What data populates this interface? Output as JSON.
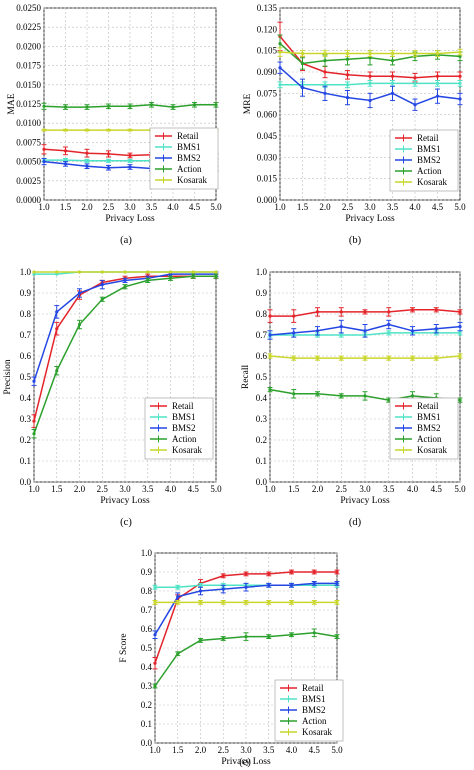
{
  "series_colors": {
    "Retail": "#e3242b",
    "BMS1": "#4fe3c6",
    "BMS2": "#2446e3",
    "Action": "#2ca02c",
    "Kosarak": "#c9d62b"
  },
  "chart_data": [
    {
      "type": "line",
      "panel_label": "(a)",
      "xlabel": "Privacy Loss",
      "ylabel": "MAE",
      "xlim": [
        1.0,
        5.0
      ],
      "ylim": [
        0.0,
        0.025
      ],
      "xticks": [
        "1.0",
        "1.5",
        "2.0",
        "2.5",
        "3.0",
        "3.5",
        "4.0",
        "4.5",
        "5.0"
      ],
      "yticks": [
        "0.0000",
        "0.0025",
        "0.0050",
        "0.0075",
        "0.0100",
        "0.0125",
        "0.0150",
        "0.0175",
        "0.0200",
        "0.0225",
        "0.0250"
      ],
      "grid": true,
      "legend_position": "bottom-right",
      "x": [
        1.0,
        1.5,
        2.0,
        2.5,
        3.0,
        3.5,
        4.0,
        4.5,
        5.0
      ],
      "series": [
        {
          "name": "Retail",
          "values": [
            0.0066,
            0.0064,
            0.0061,
            0.006,
            0.0058,
            0.0059,
            0.0058,
            0.0057,
            0.0057
          ],
          "err": [
            0.0006,
            0.0005,
            0.0005,
            0.0004,
            0.0003,
            0.0003,
            0.0003,
            0.0003,
            0.0003
          ]
        },
        {
          "name": "BMS1",
          "values": [
            0.0052,
            0.0052,
            0.0051,
            0.0051,
            0.0051,
            0.0051,
            0.0051,
            0.0051,
            0.0051
          ],
          "err": [
            0.0002,
            0.0002,
            0.0002,
            0.0002,
            0.0002,
            0.0002,
            0.0002,
            0.0002,
            0.0002
          ]
        },
        {
          "name": "BMS2",
          "values": [
            0.005,
            0.0047,
            0.0044,
            0.0042,
            0.0043,
            0.0041,
            0.0042,
            0.0041,
            0.0041
          ],
          "err": [
            0.0004,
            0.0003,
            0.0003,
            0.0003,
            0.0003,
            0.0003,
            0.0003,
            0.0003,
            0.0003
          ]
        },
        {
          "name": "Action",
          "values": [
            0.0122,
            0.0121,
            0.0121,
            0.0122,
            0.0122,
            0.0124,
            0.0121,
            0.0124,
            0.0124
          ],
          "err": [
            0.0004,
            0.0003,
            0.0003,
            0.0003,
            0.0003,
            0.0003,
            0.0003,
            0.0003,
            0.0003
          ]
        },
        {
          "name": "Kosarak",
          "values": [
            0.0091,
            0.0091,
            0.0091,
            0.0091,
            0.0091,
            0.0091,
            0.0091,
            0.0091,
            0.0091
          ],
          "err": [
            0.0001,
            0.0001,
            0.0001,
            0.0001,
            0.0001,
            0.0001,
            0.0001,
            0.0001,
            0.0001
          ]
        }
      ]
    },
    {
      "type": "line",
      "panel_label": "(b)",
      "xlabel": "Privacy Loss",
      "ylabel": "MRE",
      "xlim": [
        1.0,
        5.0
      ],
      "ylim": [
        0.0,
        0.135
      ],
      "xticks": [
        "1.0",
        "1.5",
        "2.0",
        "2.5",
        "3.0",
        "3.5",
        "4.0",
        "4.5",
        "5.0"
      ],
      "yticks": [
        "0.000",
        "0.015",
        "0.030",
        "0.045",
        "0.060",
        "0.075",
        "0.090",
        "0.105",
        "0.120",
        "0.135"
      ],
      "grid": true,
      "legend_position": "bottom-right",
      "x": [
        1.0,
        1.5,
        2.0,
        2.5,
        3.0,
        3.5,
        4.0,
        4.5,
        5.0
      ],
      "series": [
        {
          "name": "Retail",
          "values": [
            0.115,
            0.096,
            0.09,
            0.088,
            0.087,
            0.087,
            0.086,
            0.087,
            0.087
          ],
          "err": [
            0.01,
            0.005,
            0.004,
            0.003,
            0.003,
            0.003,
            0.003,
            0.003,
            0.003
          ]
        },
        {
          "name": "BMS1",
          "values": [
            0.081,
            0.081,
            0.081,
            0.081,
            0.082,
            0.082,
            0.082,
            0.082,
            0.082
          ],
          "err": [
            0.002,
            0.002,
            0.002,
            0.002,
            0.002,
            0.002,
            0.002,
            0.002,
            0.002
          ]
        },
        {
          "name": "BMS2",
          "values": [
            0.093,
            0.079,
            0.075,
            0.072,
            0.07,
            0.075,
            0.067,
            0.073,
            0.071
          ],
          "err": [
            0.004,
            0.006,
            0.005,
            0.005,
            0.005,
            0.005,
            0.004,
            0.005,
            0.004
          ]
        },
        {
          "name": "Action",
          "values": [
            0.11,
            0.096,
            0.098,
            0.099,
            0.1,
            0.098,
            0.101,
            0.102,
            0.101
          ],
          "err": [
            0.006,
            0.004,
            0.004,
            0.004,
            0.005,
            0.003,
            0.003,
            0.003,
            0.003
          ]
        },
        {
          "name": "Kosarak",
          "values": [
            0.104,
            0.103,
            0.103,
            0.103,
            0.103,
            0.103,
            0.103,
            0.103,
            0.104
          ],
          "err": [
            0.003,
            0.002,
            0.002,
            0.002,
            0.002,
            0.002,
            0.002,
            0.002,
            0.002
          ]
        }
      ]
    },
    {
      "type": "line",
      "panel_label": "(c)",
      "xlabel": "Privacy Loss",
      "ylabel": "Precision",
      "xlim": [
        1.0,
        5.0
      ],
      "ylim": [
        0.0,
        1.0
      ],
      "xticks": [
        "1.0",
        "1.5",
        "2.0",
        "2.5",
        "3.0",
        "3.5",
        "4.0",
        "4.5",
        "5.0"
      ],
      "yticks": [
        "0.0",
        "0.1",
        "0.2",
        "0.3",
        "0.4",
        "0.5",
        "0.6",
        "0.7",
        "0.8",
        "0.9",
        "1.0"
      ],
      "grid": true,
      "legend_position": "bottom-right",
      "x": [
        1.0,
        1.5,
        2.0,
        2.5,
        3.0,
        3.5,
        4.0,
        4.5,
        5.0
      ],
      "series": [
        {
          "name": "Retail",
          "values": [
            0.29,
            0.73,
            0.89,
            0.95,
            0.97,
            0.98,
            0.98,
            0.98,
            0.98
          ],
          "err": [
            0.03,
            0.03,
            0.02,
            0.01,
            0.01,
            0.01,
            0.01,
            0.01,
            0.01
          ]
        },
        {
          "name": "BMS1",
          "values": [
            0.99,
            0.99,
            1.0,
            1.0,
            1.0,
            1.0,
            1.0,
            1.0,
            1.0
          ],
          "err": [
            0.0,
            0.0,
            0.0,
            0.0,
            0.0,
            0.0,
            0.0,
            0.0,
            0.0
          ]
        },
        {
          "name": "BMS2",
          "values": [
            0.48,
            0.81,
            0.9,
            0.94,
            0.96,
            0.97,
            0.99,
            0.99,
            0.99
          ],
          "err": [
            0.02,
            0.03,
            0.02,
            0.02,
            0.01,
            0.01,
            0.01,
            0.01,
            0.01
          ]
        },
        {
          "name": "Action",
          "values": [
            0.23,
            0.53,
            0.75,
            0.87,
            0.93,
            0.96,
            0.97,
            0.98,
            0.98
          ],
          "err": [
            0.02,
            0.02,
            0.02,
            0.01,
            0.01,
            0.01,
            0.01,
            0.01,
            0.01
          ]
        },
        {
          "name": "Kosarak",
          "values": [
            1.0,
            1.0,
            1.0,
            1.0,
            1.0,
            1.0,
            1.0,
            1.0,
            1.0
          ],
          "err": [
            0.0,
            0.0,
            0.0,
            0.0,
            0.0,
            0.0,
            0.0,
            0.0,
            0.0
          ]
        }
      ]
    },
    {
      "type": "line",
      "panel_label": "(d)",
      "xlabel": "Privacy Loss",
      "ylabel": "Recall",
      "xlim": [
        1.0,
        5.0
      ],
      "ylim": [
        0.0,
        1.0
      ],
      "xticks": [
        "1.0",
        "1.5",
        "2.0",
        "2.5",
        "3.0",
        "3.5",
        "4.0",
        "4.5",
        "5.0"
      ],
      "yticks": [
        "0.0",
        "0.1",
        "0.2",
        "0.3",
        "0.4",
        "0.5",
        "0.6",
        "0.7",
        "0.8",
        "0.9",
        "1.0"
      ],
      "grid": true,
      "legend_position": "bottom-right",
      "x": [
        1.0,
        1.5,
        2.0,
        2.5,
        3.0,
        3.5,
        4.0,
        4.5,
        5.0
      ],
      "series": [
        {
          "name": "Retail",
          "values": [
            0.79,
            0.79,
            0.81,
            0.81,
            0.81,
            0.81,
            0.82,
            0.82,
            0.81
          ],
          "err": [
            0.03,
            0.03,
            0.02,
            0.02,
            0.01,
            0.02,
            0.01,
            0.01,
            0.01
          ]
        },
        {
          "name": "BMS1",
          "values": [
            0.7,
            0.7,
            0.7,
            0.7,
            0.7,
            0.71,
            0.71,
            0.71,
            0.71
          ],
          "err": [
            0.01,
            0.01,
            0.01,
            0.01,
            0.01,
            0.01,
            0.01,
            0.01,
            0.01
          ]
        },
        {
          "name": "BMS2",
          "values": [
            0.7,
            0.71,
            0.72,
            0.74,
            0.72,
            0.75,
            0.72,
            0.73,
            0.74
          ],
          "err": [
            0.02,
            0.02,
            0.02,
            0.03,
            0.03,
            0.02,
            0.02,
            0.02,
            0.02
          ]
        },
        {
          "name": "Action",
          "values": [
            0.44,
            0.42,
            0.42,
            0.41,
            0.41,
            0.39,
            0.41,
            0.4,
            0.39
          ],
          "err": [
            0.01,
            0.02,
            0.01,
            0.01,
            0.02,
            0.01,
            0.02,
            0.02,
            0.01
          ]
        },
        {
          "name": "Kosarak",
          "values": [
            0.6,
            0.59,
            0.59,
            0.59,
            0.59,
            0.59,
            0.59,
            0.59,
            0.6
          ],
          "err": [
            0.01,
            0.01,
            0.01,
            0.01,
            0.01,
            0.01,
            0.01,
            0.01,
            0.01
          ]
        }
      ]
    },
    {
      "type": "line",
      "panel_label": "(e)",
      "xlabel": "Privacy Loss",
      "ylabel": "F Score",
      "xlim": [
        1.0,
        5.0
      ],
      "ylim": [
        0.0,
        1.0
      ],
      "xticks": [
        "1.0",
        "1.5",
        "2.0",
        "2.5",
        "3.0",
        "3.5",
        "4.0",
        "4.5",
        "5.0"
      ],
      "yticks": [
        "0.0",
        "0.1",
        "0.2",
        "0.3",
        "0.4",
        "0.5",
        "0.6",
        "0.7",
        "0.8",
        "0.9",
        "1.0"
      ],
      "grid": true,
      "legend_position": "bottom-right",
      "x": [
        1.0,
        1.5,
        2.0,
        2.5,
        3.0,
        3.5,
        4.0,
        4.5,
        5.0
      ],
      "series": [
        {
          "name": "Retail",
          "values": [
            0.42,
            0.76,
            0.84,
            0.88,
            0.89,
            0.89,
            0.9,
            0.9,
            0.9
          ],
          "err": [
            0.03,
            0.02,
            0.02,
            0.01,
            0.01,
            0.01,
            0.01,
            0.01,
            0.01
          ]
        },
        {
          "name": "BMS1",
          "values": [
            0.82,
            0.82,
            0.83,
            0.83,
            0.83,
            0.83,
            0.83,
            0.83,
            0.83
          ],
          "err": [
            0.01,
            0.01,
            0.01,
            0.01,
            0.01,
            0.01,
            0.01,
            0.01,
            0.01
          ]
        },
        {
          "name": "BMS2",
          "values": [
            0.57,
            0.77,
            0.8,
            0.81,
            0.82,
            0.83,
            0.83,
            0.84,
            0.84
          ],
          "err": [
            0.02,
            0.02,
            0.02,
            0.02,
            0.02,
            0.01,
            0.01,
            0.01,
            0.01
          ]
        },
        {
          "name": "Action",
          "values": [
            0.3,
            0.47,
            0.54,
            0.55,
            0.56,
            0.56,
            0.57,
            0.58,
            0.56
          ],
          "err": [
            0.01,
            0.01,
            0.01,
            0.01,
            0.02,
            0.01,
            0.01,
            0.02,
            0.01
          ]
        },
        {
          "name": "Kosarak",
          "values": [
            0.74,
            0.74,
            0.74,
            0.74,
            0.74,
            0.74,
            0.74,
            0.74,
            0.74
          ],
          "err": [
            0.01,
            0.01,
            0.01,
            0.01,
            0.01,
            0.01,
            0.01,
            0.01,
            0.01
          ]
        }
      ]
    }
  ]
}
